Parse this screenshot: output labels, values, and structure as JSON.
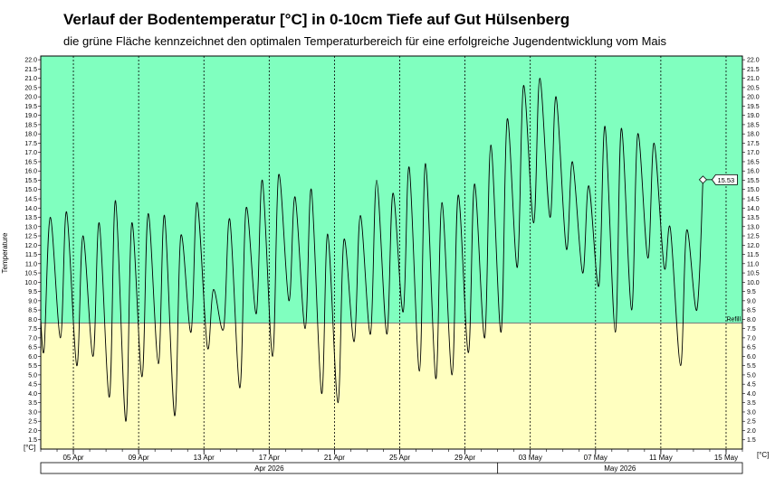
{
  "header": {
    "title": "Verlauf der Bodentemperatur [°C] in 0-10cm Tiefe auf Gut Hülsenberg",
    "subtitle": "die grüne Fläche kennzeichnet den optimalen Temperaturbereich für eine erfolgreiche Jugendentwicklung vom Mais"
  },
  "colors": {
    "optimal_zone": "#80ffbf",
    "below_zone": "#ffffc0",
    "line": "#000000",
    "grid": "#000000"
  },
  "chart_data": {
    "type": "line",
    "ylabel": "Temperature",
    "y_unit_label": "[°C]",
    "ylim": [
      1.0,
      22.2
    ],
    "ytick_step": 0.5,
    "threshold": 7.8,
    "threshold_label": "Refill",
    "last_value_label": "15.53",
    "x_start": "2026-04-03",
    "x_end": "2026-05-16",
    "xtick_labels": [
      "05 Apr",
      "09 Apr",
      "13 Apr",
      "17 Apr",
      "21 Apr",
      "25 Apr",
      "29 Apr",
      "03 May",
      "07 May",
      "11 May",
      "15 May"
    ],
    "month_labels": [
      {
        "label": "Apr 2026",
        "from": "2026-04-01",
        "to": "2026-05-01"
      },
      {
        "label": "May 2026",
        "from": "2026-05-01",
        "to": "2026-05-16"
      }
    ],
    "series": [
      {
        "values": [
          {
            "t": "2026-04-03 00:00",
            "v": 8.0
          },
          {
            "t": "2026-04-03 05:00",
            "v": 6.4
          },
          {
            "t": "2026-04-03 14:00",
            "v": 13.5
          },
          {
            "t": "2026-04-04 05:00",
            "v": 7.0
          },
          {
            "t": "2026-04-04 14:00",
            "v": 13.8
          },
          {
            "t": "2026-04-05 05:00",
            "v": 5.5
          },
          {
            "t": "2026-04-05 14:00",
            "v": 12.5
          },
          {
            "t": "2026-04-06 05:00",
            "v": 6.0
          },
          {
            "t": "2026-04-06 14:00",
            "v": 13.2
          },
          {
            "t": "2026-04-07 05:00",
            "v": 3.8
          },
          {
            "t": "2026-04-07 14:00",
            "v": 14.4
          },
          {
            "t": "2026-04-08 05:00",
            "v": 2.5
          },
          {
            "t": "2026-04-08 14:00",
            "v": 13.2
          },
          {
            "t": "2026-04-09 05:00",
            "v": 4.9
          },
          {
            "t": "2026-04-09 14:00",
            "v": 13.7
          },
          {
            "t": "2026-04-10 05:00",
            "v": 5.6
          },
          {
            "t": "2026-04-10 14:00",
            "v": 13.6
          },
          {
            "t": "2026-04-11 05:00",
            "v": 2.8
          },
          {
            "t": "2026-04-11 14:00",
            "v": 12.5
          },
          {
            "t": "2026-04-12 05:00",
            "v": 7.3
          },
          {
            "t": "2026-04-12 14:00",
            "v": 14.3
          },
          {
            "t": "2026-04-13 05:00",
            "v": 6.5
          },
          {
            "t": "2026-04-13 14:00",
            "v": 9.6
          },
          {
            "t": "2026-04-14 05:00",
            "v": 7.5
          },
          {
            "t": "2026-04-14 14:00",
            "v": 13.4
          },
          {
            "t": "2026-04-15 05:00",
            "v": 4.3
          },
          {
            "t": "2026-04-15 14:00",
            "v": 14.0
          },
          {
            "t": "2026-04-16 05:00",
            "v": 8.3
          },
          {
            "t": "2026-04-16 14:00",
            "v": 15.5
          },
          {
            "t": "2026-04-17 05:00",
            "v": 6.0
          },
          {
            "t": "2026-04-17 14:00",
            "v": 15.8
          },
          {
            "t": "2026-04-18 05:00",
            "v": 9.0
          },
          {
            "t": "2026-04-18 14:00",
            "v": 14.6
          },
          {
            "t": "2026-04-19 05:00",
            "v": 7.5
          },
          {
            "t": "2026-04-19 14:00",
            "v": 15.0
          },
          {
            "t": "2026-04-20 05:00",
            "v": 4.0
          },
          {
            "t": "2026-04-20 14:00",
            "v": 12.6
          },
          {
            "t": "2026-04-21 05:00",
            "v": 3.5
          },
          {
            "t": "2026-04-21 14:00",
            "v": 12.3
          },
          {
            "t": "2026-04-22 05:00",
            "v": 6.8
          },
          {
            "t": "2026-04-22 14:00",
            "v": 13.6
          },
          {
            "t": "2026-04-23 05:00",
            "v": 7.2
          },
          {
            "t": "2026-04-23 14:00",
            "v": 15.5
          },
          {
            "t": "2026-04-24 05:00",
            "v": 7.2
          },
          {
            "t": "2026-04-24 14:00",
            "v": 14.8
          },
          {
            "t": "2026-04-25 05:00",
            "v": 8.4
          },
          {
            "t": "2026-04-25 14:00",
            "v": 16.2
          },
          {
            "t": "2026-04-26 05:00",
            "v": 5.2
          },
          {
            "t": "2026-04-26 14:00",
            "v": 16.4
          },
          {
            "t": "2026-04-27 05:00",
            "v": 4.8
          },
          {
            "t": "2026-04-27 14:00",
            "v": 14.3
          },
          {
            "t": "2026-04-28 05:00",
            "v": 5.0
          },
          {
            "t": "2026-04-28 14:00",
            "v": 14.7
          },
          {
            "t": "2026-04-29 05:00",
            "v": 6.2
          },
          {
            "t": "2026-04-29 14:00",
            "v": 15.3
          },
          {
            "t": "2026-04-30 05:00",
            "v": 7.0
          },
          {
            "t": "2026-04-30 14:00",
            "v": 17.4
          },
          {
            "t": "2026-05-01 05:00",
            "v": 7.3
          },
          {
            "t": "2026-05-01 14:00",
            "v": 18.8
          },
          {
            "t": "2026-05-02 05:00",
            "v": 10.8
          },
          {
            "t": "2026-05-02 14:00",
            "v": 20.6
          },
          {
            "t": "2026-05-03 05:00",
            "v": 13.2
          },
          {
            "t": "2026-05-03 14:00",
            "v": 21.0
          },
          {
            "t": "2026-05-04 05:00",
            "v": 13.5
          },
          {
            "t": "2026-05-04 14:00",
            "v": 20.0
          },
          {
            "t": "2026-05-05 05:00",
            "v": 11.8
          },
          {
            "t": "2026-05-05 14:00",
            "v": 16.5
          },
          {
            "t": "2026-05-06 05:00",
            "v": 10.5
          },
          {
            "t": "2026-05-06 14:00",
            "v": 15.2
          },
          {
            "t": "2026-05-07 05:00",
            "v": 9.8
          },
          {
            "t": "2026-05-07 14:00",
            "v": 18.4
          },
          {
            "t": "2026-05-08 05:00",
            "v": 7.3
          },
          {
            "t": "2026-05-08 14:00",
            "v": 18.3
          },
          {
            "t": "2026-05-09 05:00",
            "v": 8.5
          },
          {
            "t": "2026-05-09 14:00",
            "v": 18.0
          },
          {
            "t": "2026-05-10 05:00",
            "v": 11.3
          },
          {
            "t": "2026-05-10 14:00",
            "v": 17.5
          },
          {
            "t": "2026-05-11 05:00",
            "v": 10.8
          },
          {
            "t": "2026-05-11 14:00",
            "v": 12.9
          },
          {
            "t": "2026-05-12 05:00",
            "v": 5.5
          },
          {
            "t": "2026-05-12 14:00",
            "v": 12.8
          },
          {
            "t": "2026-05-13 05:00",
            "v": 8.5
          },
          {
            "t": "2026-05-13 14:00",
            "v": 15.53
          }
        ]
      }
    ]
  }
}
